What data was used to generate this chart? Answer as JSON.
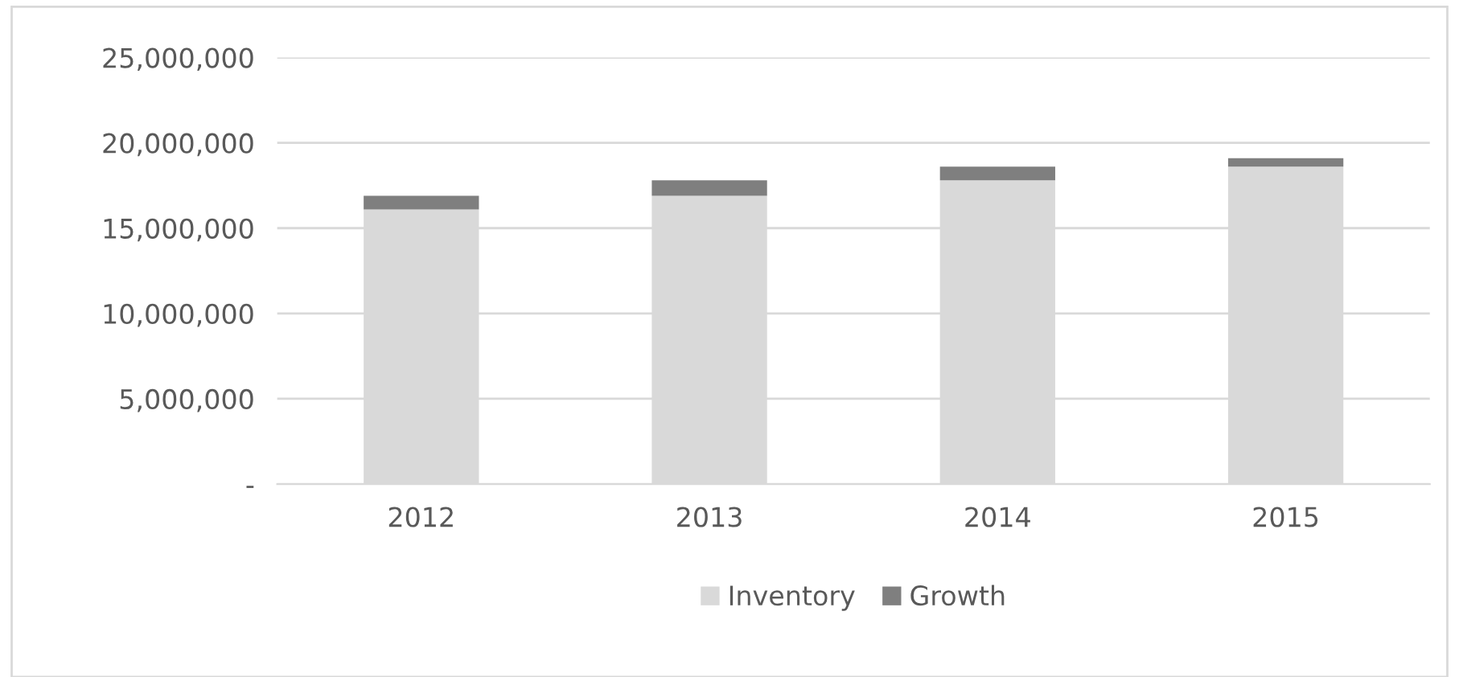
{
  "chart_data": {
    "type": "bar",
    "stacked": true,
    "categories": [
      "2012",
      "2013",
      "2014",
      "2015"
    ],
    "series": [
      {
        "name": "Inventory",
        "color": "#d9d9d9",
        "values": [
          16100000,
          16900000,
          17800000,
          18600000
        ]
      },
      {
        "name": "Growth",
        "color": "#7f7f7f",
        "values": [
          800000,
          900000,
          800000,
          500000
        ]
      }
    ],
    "ylim": [
      0,
      25000000
    ],
    "yticks": [
      {
        "value": 0,
        "label": "-"
      },
      {
        "value": 5000000,
        "label": "5,000,000"
      },
      {
        "value": 10000000,
        "label": "10,000,000"
      },
      {
        "value": 15000000,
        "label": "15,000,000"
      },
      {
        "value": 20000000,
        "label": "20,000,000"
      },
      {
        "value": 25000000,
        "label": "25,000,000"
      }
    ],
    "grid": "y",
    "legend": "bottom"
  }
}
